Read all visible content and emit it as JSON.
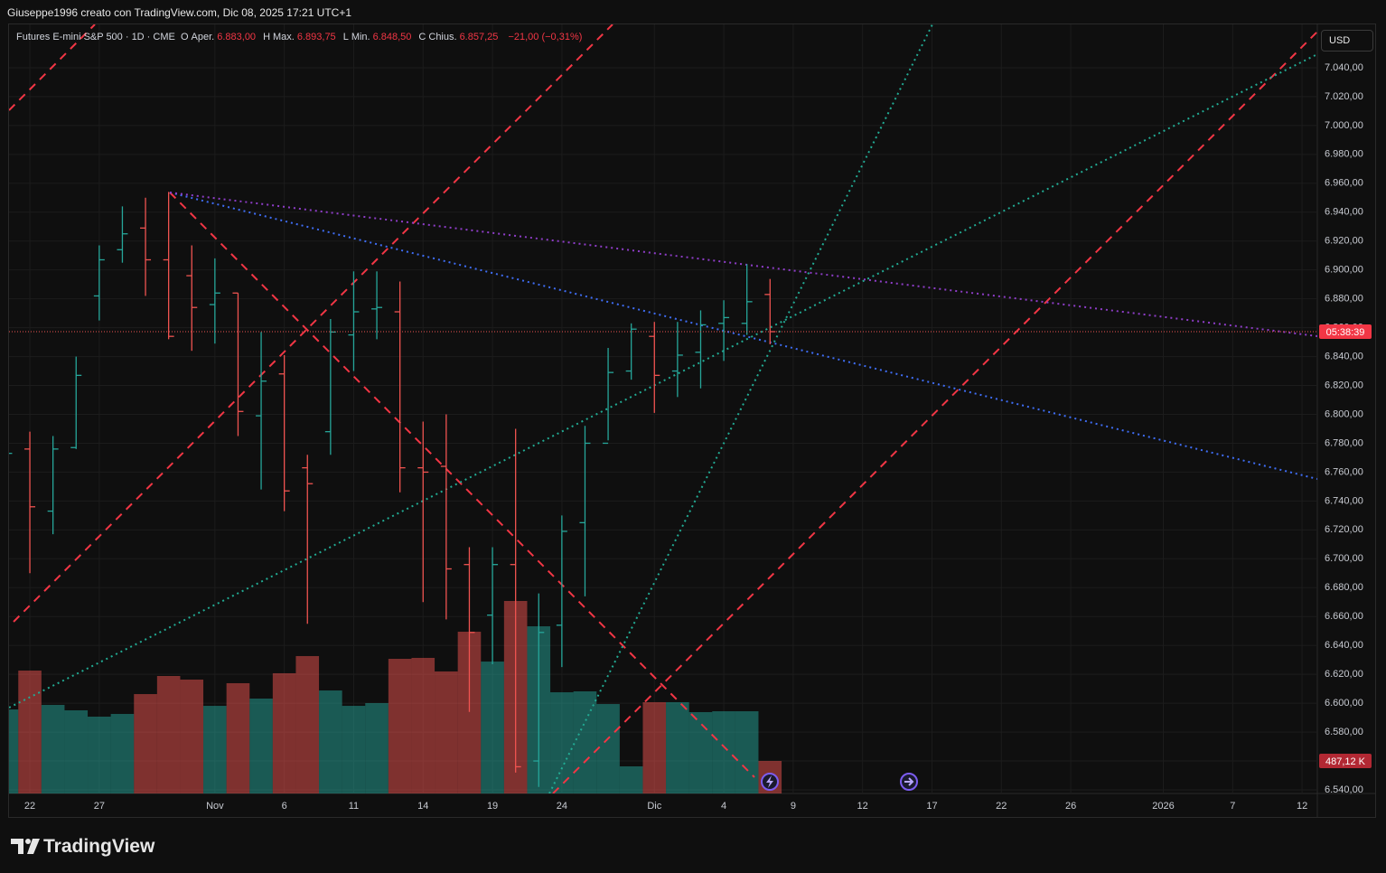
{
  "header": {
    "credit": "Giuseppe1996 creato con TradingView.com, Dic 08, 2025 17:21 UTC+1"
  },
  "currency_button": "USD",
  "footer": {
    "brand": "TradingView"
  },
  "chart_data": {
    "type": "candlestick",
    "title": "Futures E-mini S&P 500 · 1D · CME",
    "legend": {
      "items": [
        {
          "key": "O",
          "name": "Aper.",
          "value": "6.883,00"
        },
        {
          "key": "H",
          "name": "Max.",
          "value": "6.893,75"
        },
        {
          "key": "L",
          "name": "Min.",
          "value": "6.848,50"
        },
        {
          "key": "C",
          "name": "Chius.",
          "value": "6.857,25"
        }
      ],
      "change": "−21,00 (−0,31%)"
    },
    "x": [
      -1,
      0,
      1,
      2,
      3,
      4,
      5,
      6,
      7,
      8,
      9,
      10,
      11,
      12,
      13,
      14,
      15,
      16,
      17,
      18,
      19,
      20,
      21,
      22,
      23,
      24,
      25,
      26,
      27,
      28,
      29,
      30,
      31,
      32
    ],
    "open": [
      6760,
      6776,
      6733,
      6777,
      6882,
      6914,
      6929,
      6907,
      6896,
      6876,
      6884,
      6799,
      6828,
      6763,
      6788,
      6855,
      6873,
      6871,
      6763,
      6764,
      6696,
      6661,
      6696,
      6560,
      6654,
      6725,
      6780,
      6830,
      6854,
      6830,
      6843,
      6863,
      6863,
      6883
    ],
    "high": [
      6790,
      6788,
      6785,
      6840,
      6917,
      6944,
      6950,
      6954,
      6917,
      6908,
      6884,
      6857,
      6841,
      6772,
      6866,
      6899,
      6899,
      6892,
      6795,
      6800,
      6708,
      6708,
      6790,
      6676,
      6730,
      6792,
      6846,
      6863,
      6864,
      6864,
      6872,
      6879,
      6904,
      6893.75
    ],
    "low": [
      6740,
      6690,
      6717,
      6776,
      6865,
      6905,
      6882,
      6852,
      6844,
      6849,
      6785,
      6748,
      6733,
      6655,
      6772,
      6830,
      6852,
      6746,
      6670,
      6658,
      6594,
      6627,
      6552,
      6542,
      6625,
      6674,
      6782,
      6824,
      6801,
      6812,
      6818,
      6837,
      6855,
      6848.5
    ],
    "close": [
      6773,
      6736,
      6776,
      6827,
      6907,
      6925,
      6907,
      6854,
      6874,
      6884,
      6802,
      6823,
      6747,
      6752,
      6857,
      6871,
      6874,
      6763,
      6760,
      6693,
      6649,
      6696,
      6556,
      6649,
      6719,
      6780,
      6829,
      6859,
      6827,
      6841,
      6862,
      6867,
      6878,
      6857.25
    ],
    "volume": [
      1258,
      1840,
      1326,
      1245,
      1150,
      1191,
      1488,
      1759,
      1705,
      1312,
      1651,
      1421,
      1800,
      2057,
      1542,
      1312,
      1353,
      2016,
      2030,
      1827,
      2422,
      1975,
      2882,
      2503,
      1515,
      1529,
      1339,
      406,
      1367,
      1367,
      1218,
      1231,
      1231,
      487.12
    ],
    "volume_label": "487,12 K",
    "countdown": "05:38:39",
    "up_color": "#26a69a",
    "down_color": "#ef5350",
    "grid": true,
    "xlim": [
      -0.9,
      55.66
    ],
    "xticks": [
      {
        "value": 0,
        "label": "22"
      },
      {
        "value": 3,
        "label": "27"
      },
      {
        "value": 8,
        "label": "Nov"
      },
      {
        "value": 11,
        "label": "6"
      },
      {
        "value": 14,
        "label": "11"
      },
      {
        "value": 17,
        "label": "14"
      },
      {
        "value": 20,
        "label": "19"
      },
      {
        "value": 23,
        "label": "24"
      },
      {
        "value": 27,
        "label": "Dic"
      },
      {
        "value": 30,
        "label": "4"
      },
      {
        "value": 33,
        "label": "9"
      },
      {
        "value": 36,
        "label": "12"
      },
      {
        "value": 39,
        "label": "17"
      },
      {
        "value": 42,
        "label": "22"
      },
      {
        "value": 45,
        "label": "26"
      },
      {
        "value": 49,
        "label": "2026"
      },
      {
        "value": 52,
        "label": "7"
      },
      {
        "value": 55,
        "label": "12"
      }
    ],
    "ylim": [
      6537.5,
      7070
    ],
    "yticks": [
      {
        "value": 6540,
        "label": "6.540,00"
      },
      {
        "value": 6560,
        "label": "6.560,00"
      },
      {
        "value": 6580,
        "label": "6.580,00"
      },
      {
        "value": 6600,
        "label": "6.600,00"
      },
      {
        "value": 6620,
        "label": "6.620,00"
      },
      {
        "value": 6640,
        "label": "6.640,00"
      },
      {
        "value": 6660,
        "label": "6.660,00"
      },
      {
        "value": 6680,
        "label": "6.680,00"
      },
      {
        "value": 6700,
        "label": "6.700,00"
      },
      {
        "value": 6720,
        "label": "6.720,00"
      },
      {
        "value": 6740,
        "label": "6.740,00"
      },
      {
        "value": 6760,
        "label": "6.760,00"
      },
      {
        "value": 6780,
        "label": "6.780,00"
      },
      {
        "value": 6800,
        "label": "6.800,00"
      },
      {
        "value": 6820,
        "label": "6.820,00"
      },
      {
        "value": 6840,
        "label": "6.840,00"
      },
      {
        "value": 6860,
        "label": "6.860,00"
      },
      {
        "value": 6880,
        "label": "6.880,00"
      },
      {
        "value": 6900,
        "label": "6.900,00"
      },
      {
        "value": 6920,
        "label": "6.920,00"
      },
      {
        "value": 6940,
        "label": "6.940,00"
      },
      {
        "value": 6960,
        "label": "6.960,00"
      },
      {
        "value": 6980,
        "label": "6.980,00"
      },
      {
        "value": 7000,
        "label": "7.000,00"
      },
      {
        "value": 7020,
        "label": "7.020,00"
      },
      {
        "value": 7040,
        "label": "7.040,00"
      }
    ]
  }
}
